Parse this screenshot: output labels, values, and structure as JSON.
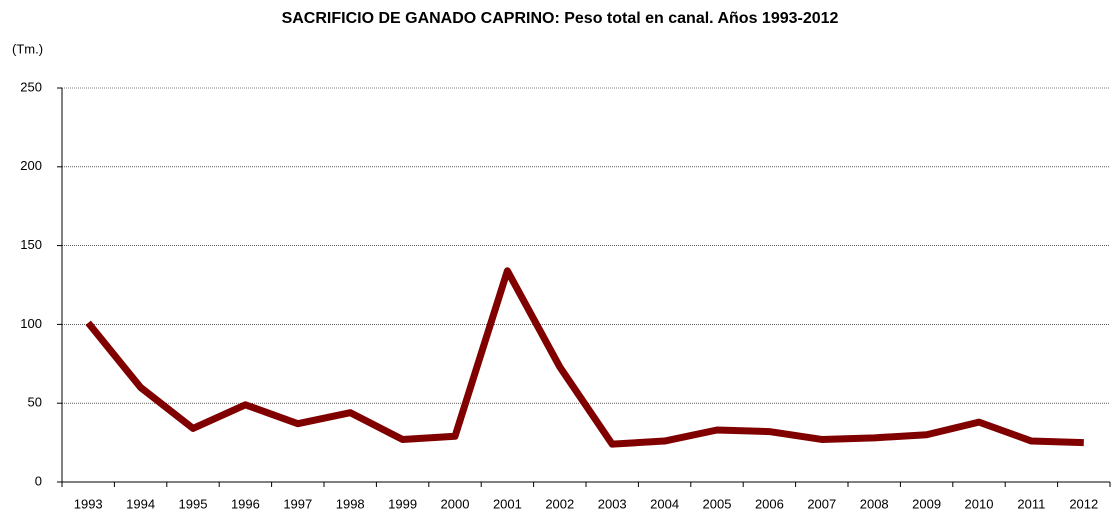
{
  "chart_data": {
    "type": "line",
    "title": "SACRIFICIO DE GANADO CAPRINO: Peso total en canal. Años 1993-2012",
    "y_label": "(Tm.)",
    "categories": [
      "1993",
      "1994",
      "1995",
      "1996",
      "1997",
      "1998",
      "1999",
      "2000",
      "2001",
      "2002",
      "2003",
      "2004",
      "2005",
      "2006",
      "2007",
      "2008",
      "2009",
      "2010",
      "2011",
      "2012"
    ],
    "values": [
      101,
      60,
      34,
      49,
      37,
      44,
      27,
      29,
      134,
      73,
      24,
      26,
      33,
      32,
      27,
      28,
      30,
      38,
      26,
      25
    ],
    "color": "#800000",
    "ylim": [
      0,
      250
    ],
    "yticks": [
      0,
      50,
      100,
      150,
      200,
      250
    ],
    "grid": true
  }
}
